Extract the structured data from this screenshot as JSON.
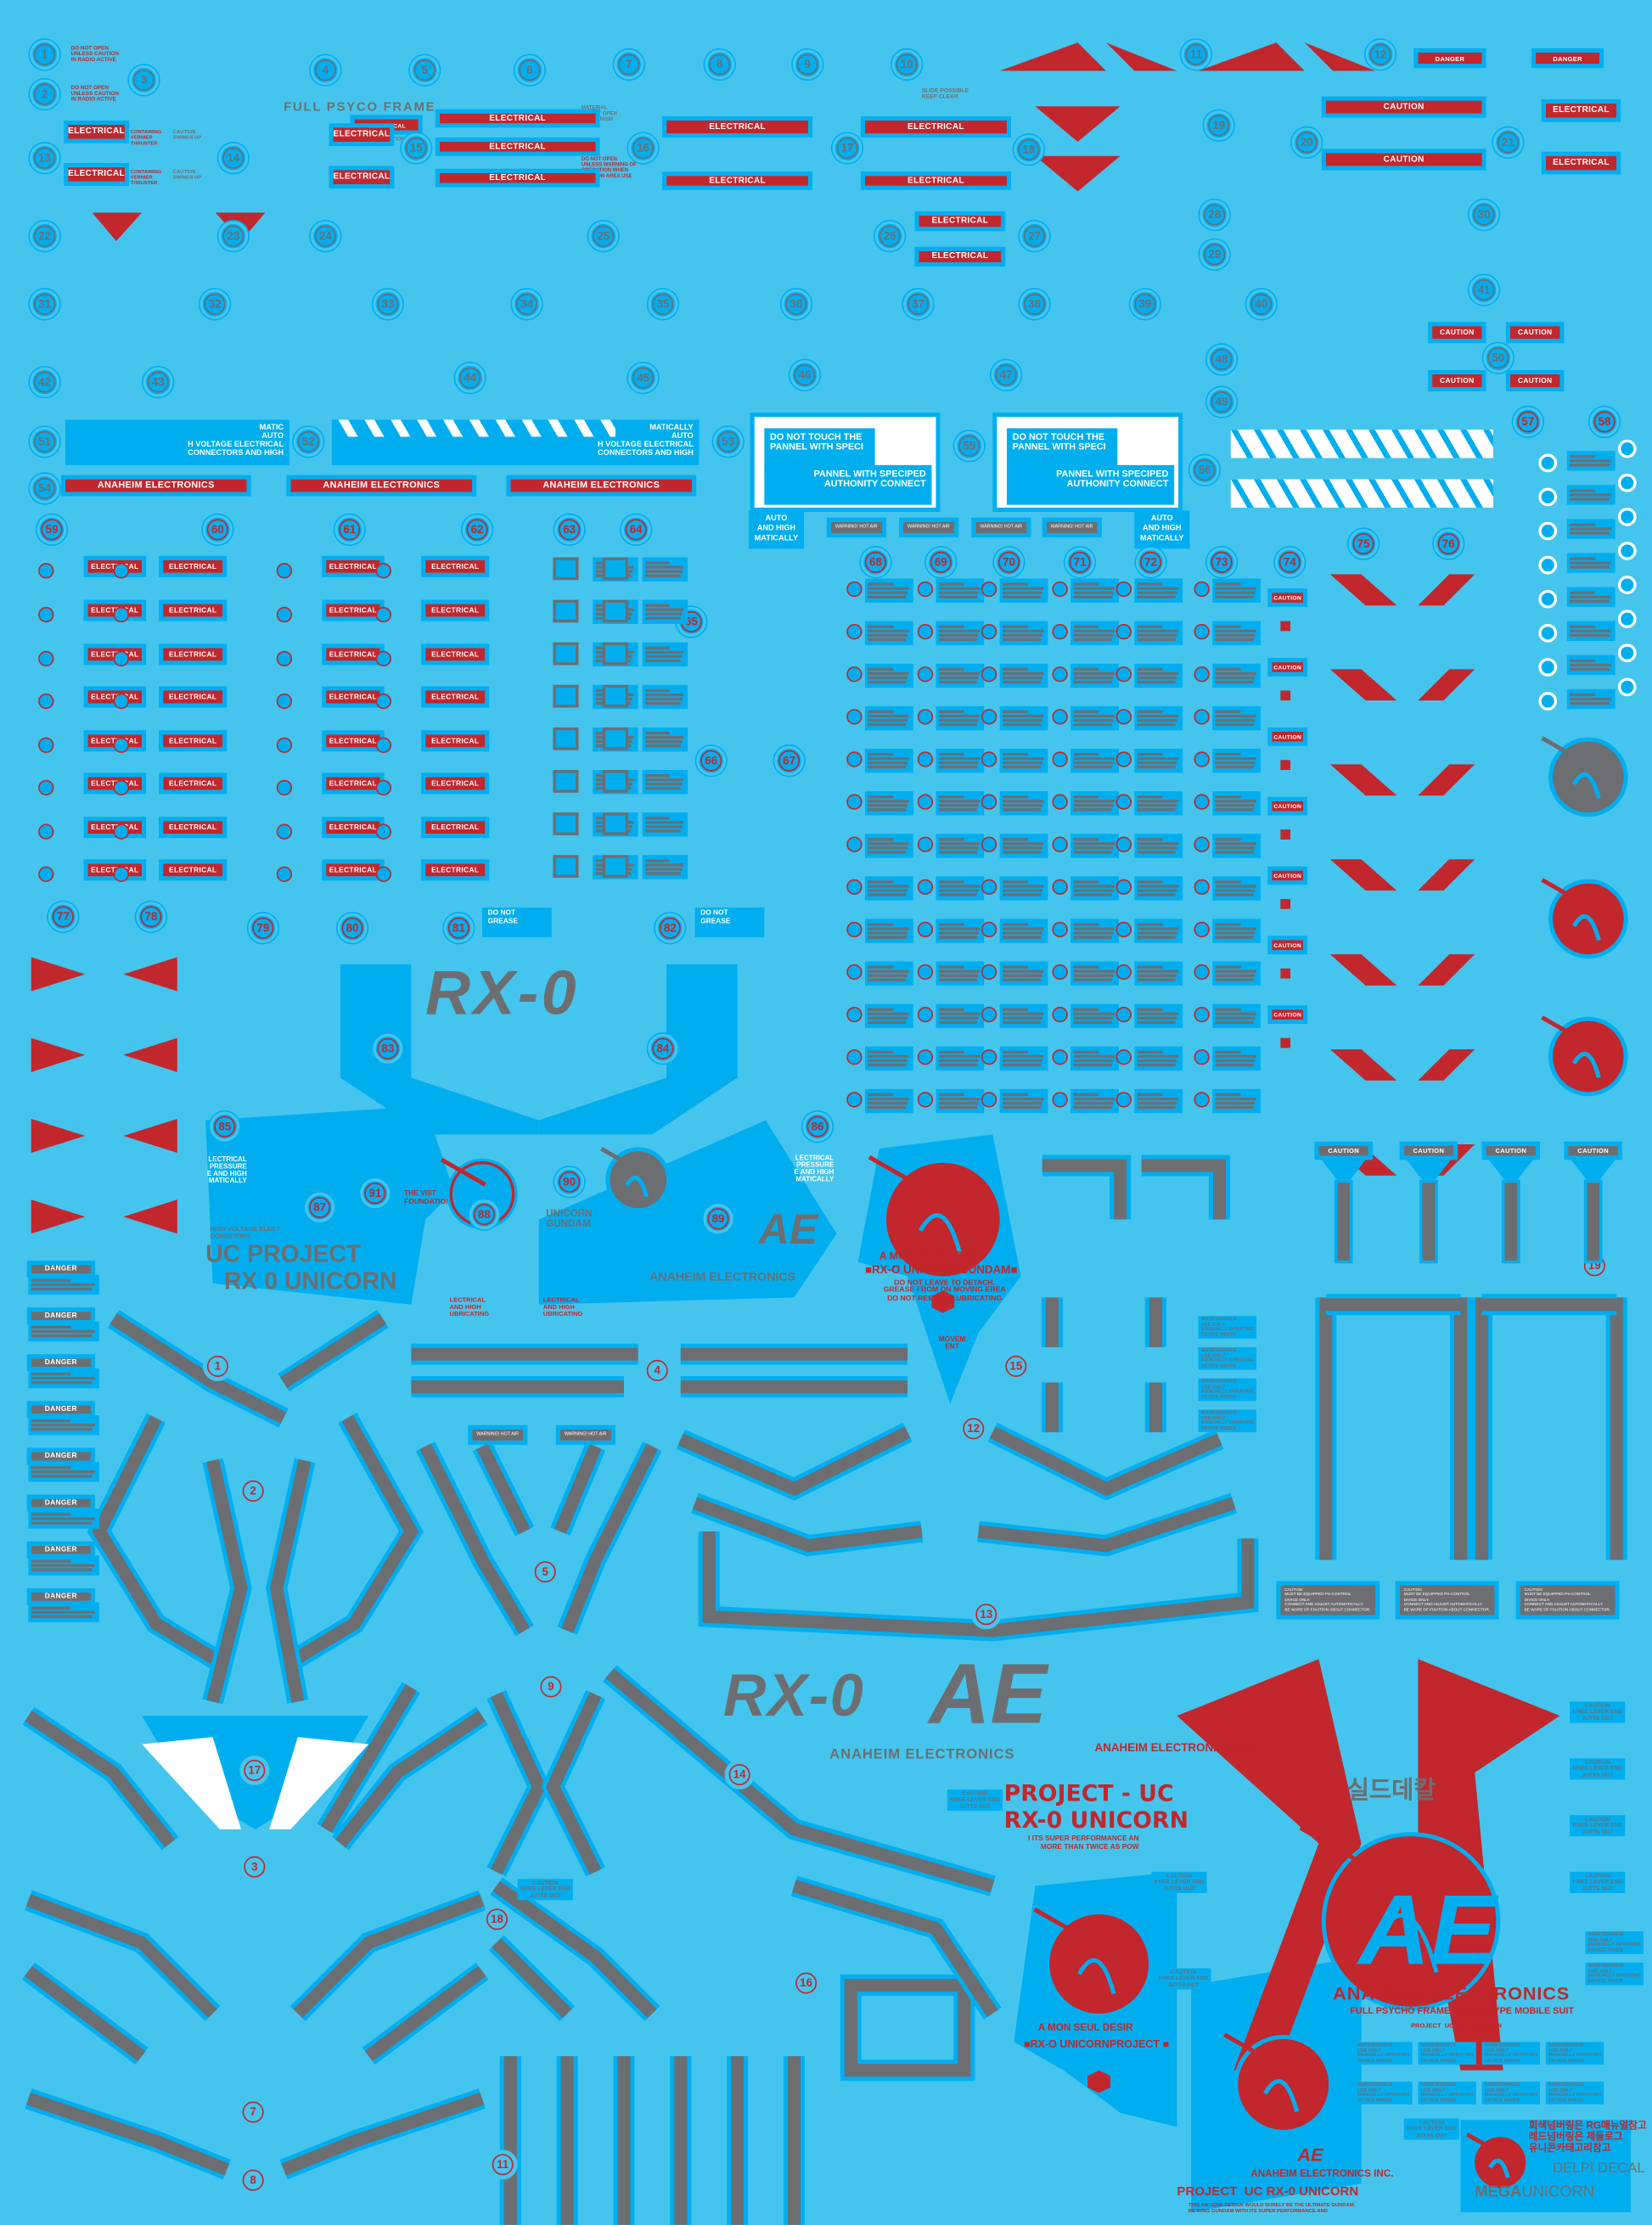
{
  "colors": {
    "background": "#45c5ed",
    "decal_blue": "#00aeef",
    "decal_red": "#c1272d",
    "decal_gray": "#6d6e71",
    "decal_white": "#ffffff"
  },
  "labels": {
    "electrical": "ELECTRICAL",
    "danger": "DANGER",
    "caution": "CAUTION",
    "warning_hot_air": "WARNING! HOT AIR",
    "anaheim": "ANAHEIM ELECTRONICS",
    "full_psyco_frame": "FULL PSYCO FRAME",
    "caution_operations": "CAUTION OPERATIONS",
    "do_not_open_radio": "DO NOT OPEN\nUNLESS CAUTION\nIN RADIO ACTIVE",
    "material_do_not_open": "MATERIAL\nDO NOT OPEN\nMECHANISM",
    "do_not_open_warning": "DO NOT OPEN\nUNLESS WARNING OF\nOPERATION WHEN\nCAUTION AREA USE",
    "containing_vernier": "CONTAINING\nVERNIER\nTHRUSTER",
    "caution_swings_up": "CAUTION\nSWINGS UP",
    "slide_keep_clear": "SLIDE POSSIBLE\nKEEP CLEAR",
    "do_not_grease": "DO NOT\nGREASE",
    "caution_knee": "CAUTION\nKNEE LEVER END\nJUTTS OUT",
    "maintenance": "MAINTENANCE\nUSE ONLY\nMANUALLY OPRATING\nDEVICE INSIDE",
    "caution_ps_control": "CAUTION\nMUST BE EQUIPPED PS-CONTROL\nDIVICE ONLY.\nCONNECT AND ADJUST AUTOMATICALLY.\nBE WARE OF FIXATION ABOUT CONNECTOR.",
    "voltage_text": "MATIC\nAUTO\nH VOLTAGE ELECTRICAL\nCONNECTORS AND HIGH",
    "voltage_text_2": "MATICALLY\nAUTO\nH VOLTAGE ELECTRICAL\nCONNECTORS AND HIGH"
  },
  "panel_55": {
    "line1": "DO NOT TOUCH THE\nPANNEL WITH SPECI",
    "line2": "PANNEL WITH SPECIPED\nAUTHONITY CONNECT",
    "side": "AUTO\nAND HIGH\nMATICALLY"
  },
  "logos": {
    "rx0": "RX-0",
    "rx0_ae": "RX-0",
    "ae": "AE",
    "anaheim_electronics": "ANAHEIM ELECTRONICS",
    "anaheim_inc": "ANAHEIM ELECTRONICS INC.",
    "uc_project": "UC PROJECT",
    "rx0_unicorn": "RX 0 UNICORN",
    "high_voltage": "HIGH VOLTAGE ELECT\nCONNETORS",
    "vist_foundation": "THE VIST\nFOUNDATION",
    "unicorn_gundam": "UNICORN\nGUNDAM",
    "lubricating": "LECTRICAL\nAND HIGH\nUBRICATING",
    "lectrical_pressure": "LECTRICAL\nPRESSURE\nE AND HIGH\nMATICALLY",
    "mon_seul_desir": "A MON SEUL DESIR",
    "rx0_unicorn_gundam": "■RX-O UNICORN GUNDAM■",
    "do_not_leave": "DO NOT LEAVE TO DETACH.\nGREASE FROM ON MOVING EREA\nDO NOT REMOVE LUBRICATING\nTING",
    "movement": "MOVEM\nENT",
    "project_uc": "PROJECT - UC",
    "rx0_unicorn_red": "RX-0 UNICORN",
    "super_performance": "I ITS SUPER PERFORMANCE AN\nMORE THAN TWICE AS POW",
    "rx0_unicorn_project": "■RX-O UNICORNPROJECT ■",
    "full_psycho_frame": "FULL PSYCHO FRAME PROTO TYPE MOBILE SUIT",
    "project_uc_rx0": "PROJECT  UC RX-0 UNICORN",
    "project_uc_rx0_big": "PROJECT  UC RX-0 UNICORN",
    "antique_design": "THIS ANTIQUE DESIGN WOULD SURELY BE THE ULTIMATE GUNDAM.\nBE WING GUNDAM WITH ITS SUPER PERFORMANCE AND",
    "korean_shield": "실드데칼",
    "korean_note": "회색넘버링은 RG매뉴얼참고\n레드넘버링은 제들로그\n유니콘카테고리참고",
    "delpi_decal": "DELPI DECAL",
    "mega": "MEGA",
    "unicorn": "UNICORN"
  },
  "numbers": [
    "1",
    "2",
    "3",
    "4",
    "5",
    "6",
    "7",
    "8",
    "9",
    "10",
    "11",
    "12",
    "13",
    "14",
    "15",
    "16",
    "17",
    "18",
    "19",
    "20",
    "21",
    "22",
    "23",
    "24",
    "25",
    "26",
    "27",
    "28",
    "29",
    "30",
    "31",
    "32",
    "33",
    "34",
    "35",
    "36",
    "37",
    "38",
    "39",
    "40",
    "41",
    "42",
    "43",
    "44",
    "45",
    "46",
    "47",
    "48",
    "49",
    "50",
    "51",
    "52",
    "53",
    "54",
    "55",
    "56",
    "57",
    "58",
    "59",
    "60",
    "61",
    "62",
    "63",
    "64",
    "65",
    "66",
    "67",
    "68",
    "69",
    "70",
    "71",
    "72",
    "73",
    "74",
    "75",
    "76",
    "77",
    "78",
    "79",
    "80",
    "81",
    "82",
    "83",
    "84",
    "85",
    "86",
    "87",
    "88",
    "89",
    "90",
    "91"
  ],
  "part_numbers": [
    "1",
    "2",
    "3",
    "4",
    "5",
    "6",
    "7",
    "8",
    "9",
    "10",
    "11",
    "12",
    "13",
    "14",
    "15",
    "16",
    "17",
    "18",
    "19"
  ]
}
